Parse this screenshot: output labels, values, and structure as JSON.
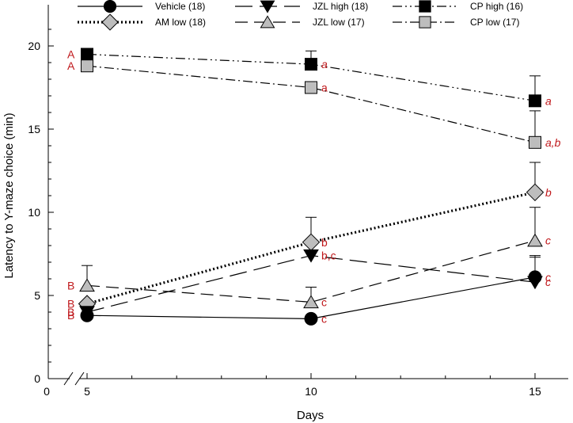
{
  "chart_data": {
    "type": "line",
    "xlabel": "Days",
    "ylabel": "Latency to Y-maze choice (min)",
    "xlim": [
      0,
      16
    ],
    "ylim": [
      0,
      22
    ],
    "x_ticks": [
      "0",
      "5",
      "10",
      "15"
    ],
    "y_ticks": [
      "0",
      "5",
      "10",
      "15",
      "20"
    ],
    "x": [
      5,
      10,
      15
    ],
    "axis_break": "x, between 0 and 5",
    "significance_color": "#c0191c",
    "series": [
      {
        "name": "Vehicle (18)",
        "marker": "circle",
        "fill": "#000000",
        "linestyle": "solid",
        "values": [
          3.8,
          3.6,
          6.1
        ],
        "errors": [
          0,
          0,
          1.3
        ],
        "labels": [
          "B",
          "c",
          "c"
        ],
        "label_italic": [
          false,
          false,
          true
        ]
      },
      {
        "name": "AM low (18)",
        "marker": "diamond",
        "fill": "#bdbdbd",
        "linestyle": "dotted",
        "values": [
          4.5,
          8.2,
          11.2
        ],
        "errors": [
          0,
          1.5,
          1.8
        ],
        "labels": [
          "B",
          "b",
          "b"
        ],
        "label_italic": [
          false,
          false,
          true
        ]
      },
      {
        "name": "JZL high (18)",
        "marker": "triangle-down",
        "fill": "#000000",
        "linestyle": "long-dash",
        "values": [
          4.0,
          7.4,
          5.8
        ],
        "errors": [
          0,
          0,
          1.5
        ],
        "labels": [
          "B",
          "b,c",
          "c"
        ],
        "label_italic": [
          false,
          false,
          true
        ]
      },
      {
        "name": "JZL low (17)",
        "marker": "triangle-up",
        "fill": "#bdbdbd",
        "linestyle": "dash",
        "values": [
          5.6,
          4.6,
          8.3
        ],
        "errors": [
          1.2,
          0.9,
          2.0
        ],
        "labels": [
          "B",
          "c",
          "c"
        ],
        "label_italic": [
          false,
          false,
          true
        ]
      },
      {
        "name": "CP high (16)",
        "marker": "square",
        "fill": "#000000",
        "linestyle": "dash-dot-dot",
        "values": [
          19.5,
          18.9,
          16.7
        ],
        "errors": [
          0.3,
          0.8,
          1.5
        ],
        "labels": [
          "A",
          "a",
          "a"
        ],
        "label_italic": [
          false,
          true,
          true
        ]
      },
      {
        "name": "CP low (17)",
        "marker": "square",
        "fill": "#bdbdbd",
        "linestyle": "dash-dot",
        "values": [
          18.8,
          17.5,
          14.2
        ],
        "errors": [
          0,
          0,
          1.9
        ],
        "labels": [
          "A",
          "a",
          "a,b"
        ],
        "label_italic": [
          false,
          false,
          true
        ]
      }
    ]
  }
}
